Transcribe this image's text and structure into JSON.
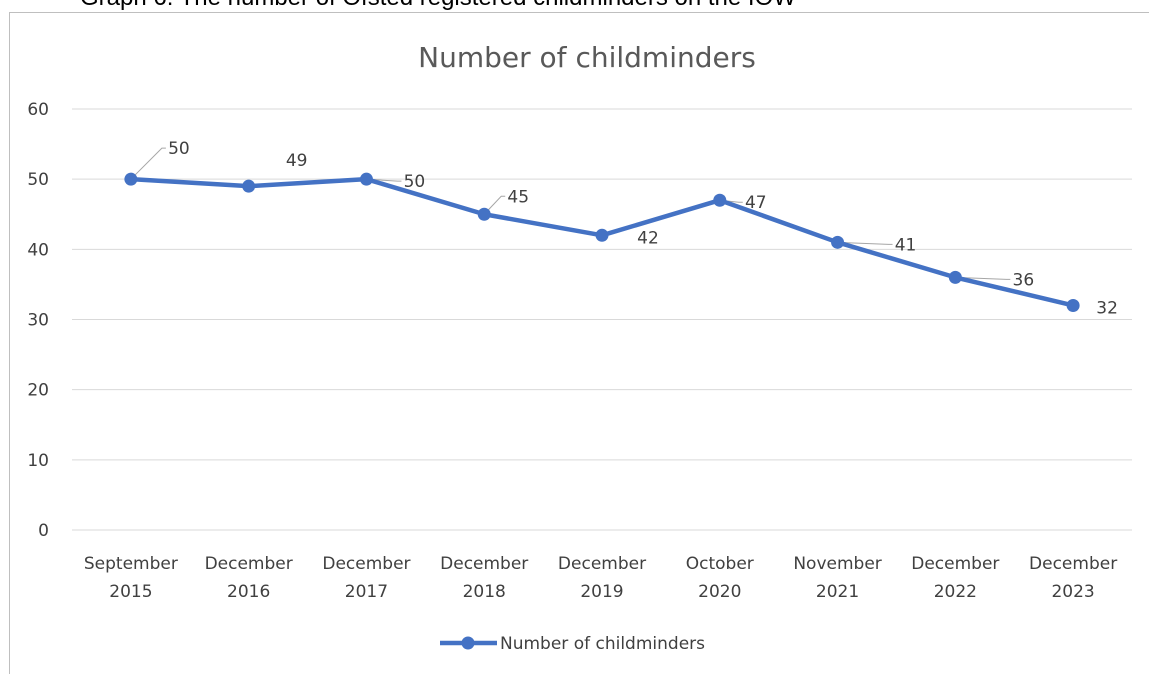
{
  "page": {
    "caption": "Graph 6: The number of Ofsted registered childminders on the IOW"
  },
  "chart_data": {
    "type": "line",
    "title": "Number of childminders",
    "xlabel": "",
    "ylabel": "",
    "categories": [
      [
        "September",
        "2015"
      ],
      [
        "December",
        "2016"
      ],
      [
        "December",
        "2017"
      ],
      [
        "December",
        "2018"
      ],
      [
        "December",
        "2019"
      ],
      [
        "October",
        "2020"
      ],
      [
        "November",
        "2021"
      ],
      [
        "December",
        "2022"
      ],
      [
        "December",
        "2023"
      ]
    ],
    "series": [
      {
        "name": "Number of childminders",
        "values": [
          50,
          49,
          50,
          45,
          42,
          47,
          41,
          36,
          32
        ],
        "color": "#4472C4"
      }
    ],
    "ylim": [
      0,
      60
    ],
    "yticks": [
      0,
      10,
      20,
      30,
      40,
      50,
      60
    ],
    "grid": true,
    "legend_position": "bottom",
    "colors": {
      "gridline": "#D9D9D9",
      "border": "#BFBFBF",
      "text": "#404040",
      "title": "#595959",
      "leader_line": "#A6A6A6"
    }
  }
}
